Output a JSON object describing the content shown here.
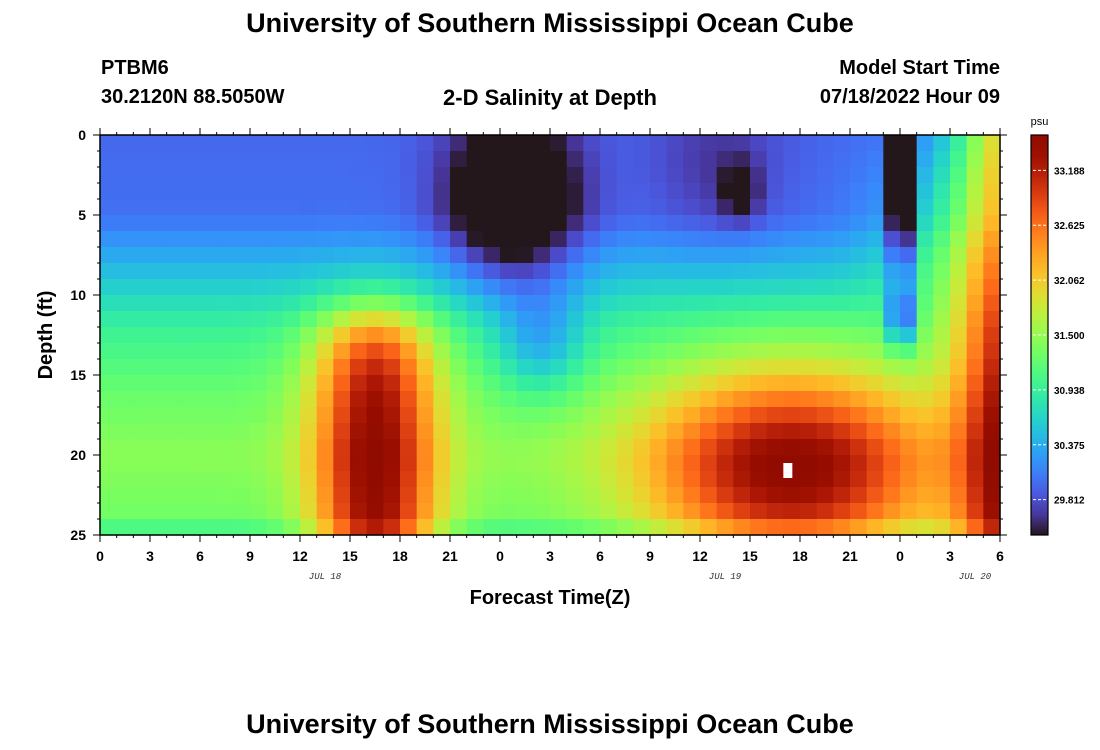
{
  "header": {
    "title": "University of Southern Mississippi Ocean Cube",
    "station": "PTBM6",
    "coords": "30.2120N  88.5050W",
    "chart_title": "2-D Salinity at Depth",
    "model_label": "Model Start Time",
    "model_time": "07/18/2022 Hour 09",
    "footer_title": "University of Southern Mississippi Ocean Cube"
  },
  "chart_data": {
    "type": "heatmap",
    "title": "2-D Salinity at Depth",
    "xlabel": "Forecast Time(Z)",
    "ylabel": "Depth (ft)",
    "x_ticks": [
      "0",
      "3",
      "6",
      "9",
      "12",
      "15",
      "18",
      "21",
      "0",
      "3",
      "6",
      "9",
      "12",
      "15",
      "18",
      "21",
      "0",
      "3",
      "6"
    ],
    "date_labels": [
      {
        "label": "JUL 18",
        "after_tick": 4
      },
      {
        "label": "JUL 19",
        "after_tick": 12
      },
      {
        "label": "JUL 20",
        "after_tick": 17
      }
    ],
    "x_hours_range": [
      0,
      54
    ],
    "ylim": [
      0,
      25
    ],
    "y_ticks": [
      0,
      5,
      10,
      15,
      20,
      25
    ],
    "colorbar": {
      "unit": "psu",
      "range": [
        29.45,
        33.55
      ],
      "ticks": [
        "33.188",
        "32.625",
        "32.062",
        "31.500",
        "30.938",
        "30.375",
        "29.812"
      ]
    },
    "cells": {
      "n_time": 54,
      "n_depth": 25,
      "features": [
        {
          "kind": "background_by_depth",
          "depth_ft": [
            0,
            5,
            9,
            12,
            16,
            20,
            24,
            25
          ],
          "psu": [
            29.95,
            30.0,
            30.55,
            30.95,
            31.25,
            31.45,
            31.3,
            30.9
          ]
        },
        {
          "kind": "high",
          "center_hour": 16.5,
          "center_depth_ft": 18,
          "peak_psu": 33.35
        },
        {
          "kind": "low",
          "center_hour": 24.8,
          "center_depth_ft": 4,
          "min_psu": 29.45
        },
        {
          "kind": "high",
          "center_hour": 41.5,
          "center_depth_ft": 21,
          "peak_psu": 33.5
        },
        {
          "kind": "low",
          "center_hour": 38.3,
          "center_depth_ft": 3.5,
          "min_psu": 29.75
        },
        {
          "kind": "low",
          "center_hour": 48,
          "center_depth_ft": 4,
          "min_psu": 29.65
        },
        {
          "kind": "high",
          "center_hour": 54,
          "center_depth_ft": 14,
          "peak_psu": 32.7
        }
      ]
    }
  }
}
